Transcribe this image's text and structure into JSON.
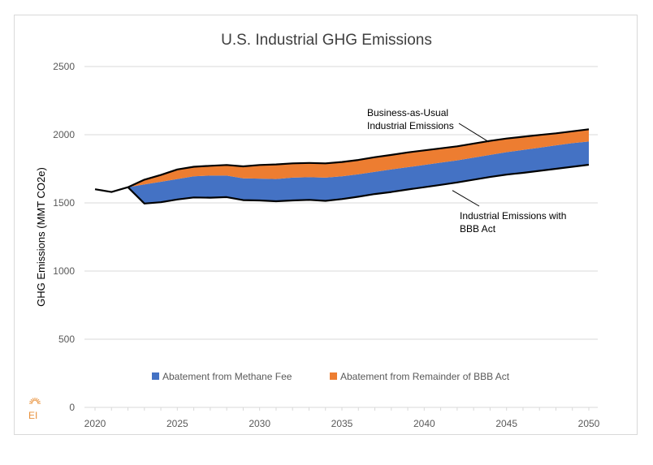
{
  "chart_data": {
    "type": "area",
    "title": "U.S. Industrial GHG Emissions",
    "xlabel": "",
    "ylabel": "GHG Emissions (MMT CO2e)",
    "xlim": [
      2019,
      2051
    ],
    "ylim": [
      0,
      2500
    ],
    "x_ticks": [
      2020,
      2025,
      2030,
      2035,
      2040,
      2045,
      2050
    ],
    "y_ticks": [
      0,
      500,
      1000,
      1500,
      2000,
      2500
    ],
    "grid": "horizontal",
    "legend_position": "bottom-inside",
    "x": [
      2020,
      2021,
      2022,
      2023,
      2024,
      2025,
      2026,
      2027,
      2028,
      2029,
      2030,
      2031,
      2032,
      2033,
      2034,
      2035,
      2036,
      2037,
      2038,
      2039,
      2040,
      2041,
      2042,
      2043,
      2044,
      2045,
      2046,
      2047,
      2048,
      2049,
      2050
    ],
    "series": [
      {
        "name": "Business-as-Usual Industrial Emissions",
        "role": "bau-line",
        "values": [
          1600,
          1580,
          1615,
          1670,
          1705,
          1745,
          1765,
          1772,
          1778,
          1768,
          1778,
          1782,
          1790,
          1793,
          1790,
          1800,
          1815,
          1835,
          1852,
          1870,
          1885,
          1900,
          1915,
          1935,
          1955,
          1972,
          1985,
          1998,
          2010,
          2025,
          2040
        ]
      },
      {
        "name": "Industrial Emissions with BBB Act",
        "role": "bbb-line",
        "values": [
          1600,
          1580,
          1615,
          1495,
          1505,
          1525,
          1540,
          1538,
          1542,
          1520,
          1518,
          1512,
          1518,
          1522,
          1515,
          1528,
          1545,
          1565,
          1580,
          1598,
          1615,
          1632,
          1650,
          1670,
          1690,
          1708,
          1720,
          1735,
          1750,
          1765,
          1780
        ]
      },
      {
        "name": "Methane fee boundary",
        "role": "boundary",
        "values": [
          1600,
          1580,
          1615,
          1635,
          1655,
          1675,
          1695,
          1700,
          1700,
          1680,
          1678,
          1675,
          1685,
          1688,
          1685,
          1695,
          1710,
          1728,
          1745,
          1762,
          1778,
          1795,
          1812,
          1832,
          1852,
          1872,
          1888,
          1905,
          1922,
          1938,
          1950
        ]
      }
    ],
    "legend": [
      {
        "label": "Abatement from Methane Fee",
        "color": "#4472c4"
      },
      {
        "label": "Abatement from Remainder of BBB Act",
        "color": "#ed7d31"
      }
    ],
    "annotations": [
      {
        "lines": [
          "Business-as-Usual",
          "Industrial Emissions"
        ],
        "points_to": "bau-line"
      },
      {
        "lines": [
          "Industrial Emissions with",
          "BBB Act"
        ],
        "points_to": "bbb-line"
      }
    ],
    "colors": {
      "methane": "#4472c4",
      "remainder": "#ed7d31",
      "line": "#000000",
      "grid": "#d9d9d9"
    }
  },
  "logo": {
    "text": "EI",
    "color": "#e8903a"
  }
}
